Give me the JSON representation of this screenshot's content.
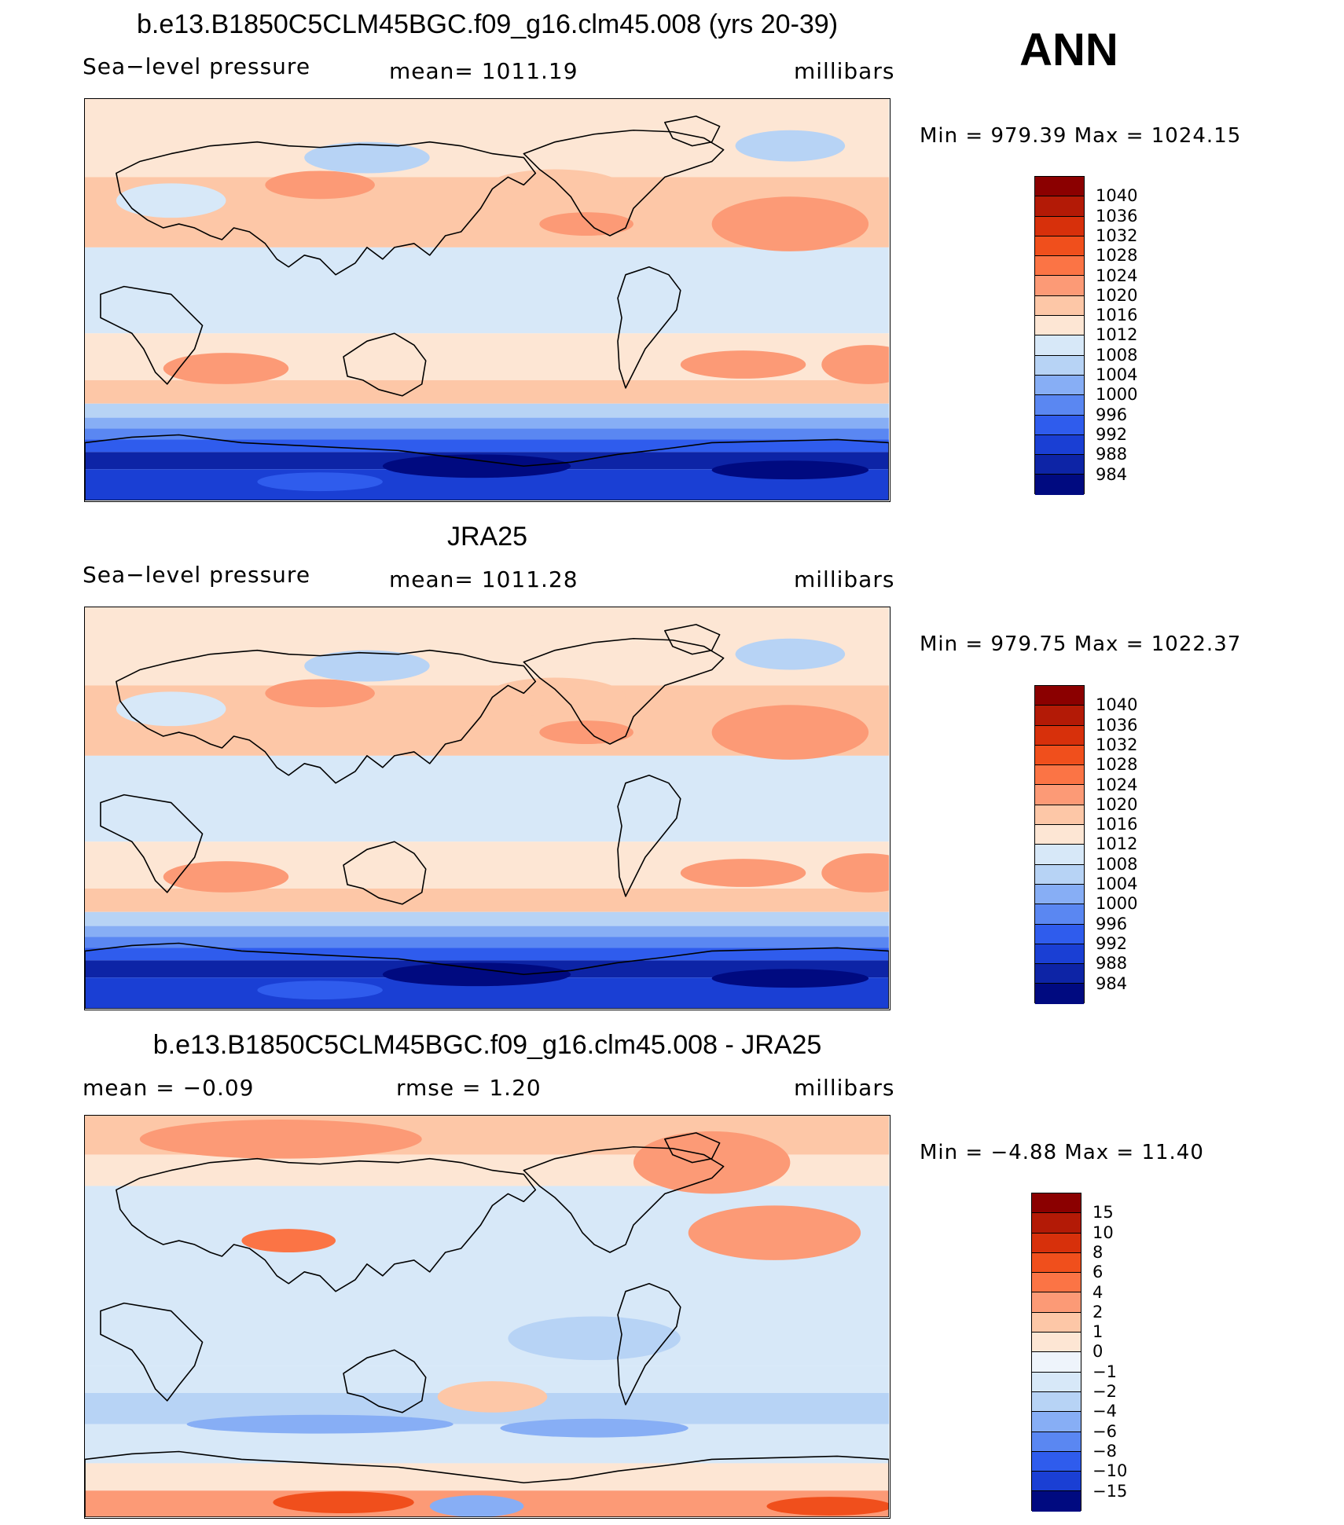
{
  "season": "ANN",
  "panels": [
    {
      "title": "b.e13.B1850C5CLM45BGC.f09_g16.clm45.008 (yrs 20-39)",
      "left_label": "Sea−level pressure",
      "center_label": "mean=  1011.19",
      "units": "millibars",
      "minmax": "Min  =  979.39  Max  =  1024.15",
      "variant": "model"
    },
    {
      "title": "JRA25",
      "left_label": "Sea−level pressure",
      "center_label": "mean=  1011.28",
      "units": "millibars",
      "minmax": "Min  =  979.75  Max  =  1022.37",
      "variant": "obs"
    },
    {
      "title": "b.e13.B1850C5CLM45BGC.f09_g16.clm45.008 - JRA25",
      "left_label": "mean  =    −0.09",
      "center_label": "rmse  =     1.20",
      "units": "millibars",
      "minmax": "Min  =   −4.88  Max  =    11.40",
      "variant": "diff"
    }
  ],
  "colorbars": {
    "abs": {
      "labels": [
        "1040",
        "1036",
        "1032",
        "1028",
        "1024",
        "1020",
        "1016",
        "1012",
        "1008",
        "1004",
        "1000",
        "996",
        "992",
        "988",
        "984"
      ],
      "colors": [
        "#8b0000",
        "#b31a06",
        "#d7300b",
        "#f04f1c",
        "#fb7445",
        "#fc9a76",
        "#fdc7a7",
        "#fde6d4",
        "#d7e8f8",
        "#b7d3f5",
        "#87aef5",
        "#5a87f2",
        "#2f5ced",
        "#1a3fd4",
        "#0d24a6",
        "#000a80"
      ]
    },
    "diff": {
      "labels": [
        "15",
        "10",
        "8",
        "6",
        "4",
        "2",
        "1",
        "0",
        "−1",
        "−2",
        "−4",
        "−6",
        "−8",
        "−10",
        "−15"
      ],
      "colors": [
        "#8b0000",
        "#b31a06",
        "#d7300b",
        "#f04f1c",
        "#fb7445",
        "#fc9a76",
        "#fdc7a7",
        "#fde6d4",
        "#eef4fb",
        "#d7e8f8",
        "#b7d3f5",
        "#87aef5",
        "#5a87f2",
        "#2f5ced",
        "#1a3fd4",
        "#000a80"
      ]
    }
  }
}
